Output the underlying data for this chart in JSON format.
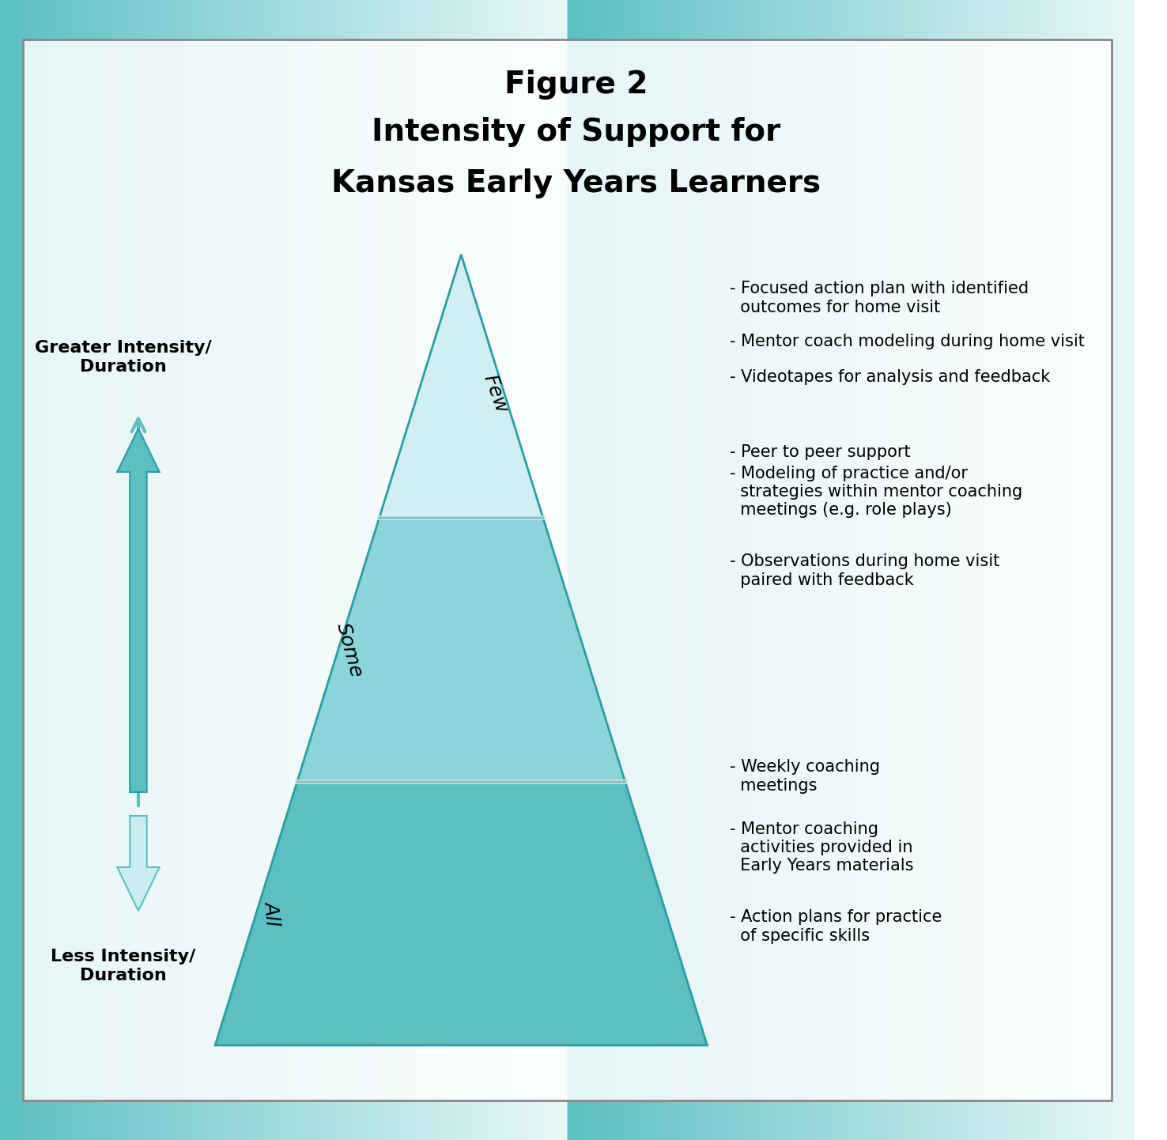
{
  "title_line1": "Figure 2",
  "title_line2": "Intensity of Support for",
  "title_line3": "Kansas Early Years Learners",
  "title_fontsize": 28,
  "background_top_color": "#5bbfc4",
  "background_bottom_color": "#e0f5f5",
  "pyramid_fill_top": "#a8e4e8",
  "pyramid_fill_mid": "#7dd4da",
  "pyramid_fill_bot": "#5bbfc4",
  "pyramid_outline_color": "#2a9da5",
  "tier_labels": [
    "Few",
    "Some",
    "All"
  ],
  "tier_label_fontsize": 18,
  "arrow_color_top": "#5bbfc4",
  "arrow_color_bottom": "#c8eef0",
  "label_greater": "Greater Intensity/\nDuration",
  "label_less": "Less Intensity/\nDuration",
  "side_label_fontsize": 16,
  "few_bullets": [
    "- Focused action plan with identified\n  outcomes for home visit",
    "- Mentor coach modeling during home visit",
    "- Videotapes for analysis and feedback"
  ],
  "some_bullets": [
    "- Peer to peer support",
    "- Modeling of practice and/or\n  strategies within mentor coaching\n  meetings (e.g. role plays)",
    "- Observations during home visit\n  paired with feedback"
  ],
  "all_bullets": [
    "- Weekly coaching\n  meetings",
    "- Mentor coaching\n  activities provided in\n  Early Years materials",
    "- Action plans for practice\n  of specific skills"
  ],
  "bullet_fontsize": 15
}
